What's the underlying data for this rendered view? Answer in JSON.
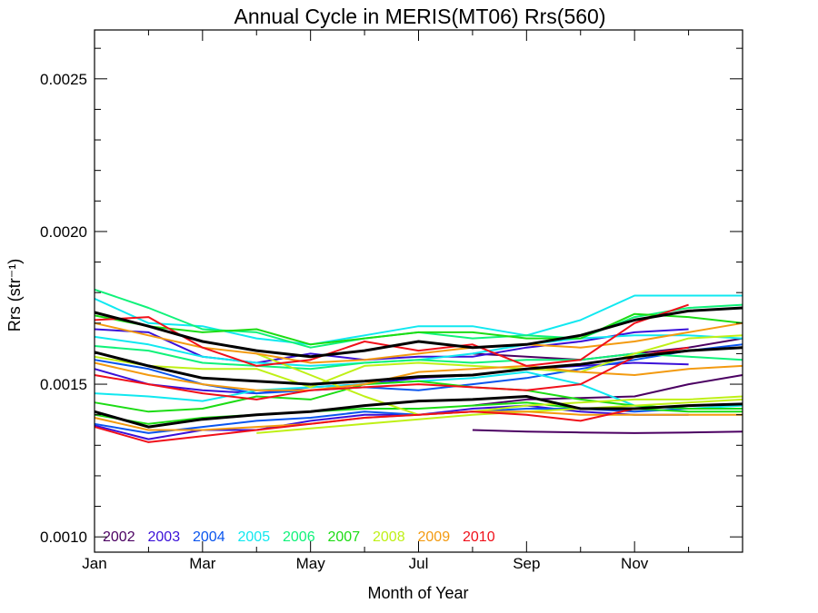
{
  "chart_data": {
    "type": "line",
    "title": "Annual Cycle in MERIS(MT06) Rrs(560)",
    "xlabel": "Month of Year",
    "ylabel": "Rrs (str⁻¹)",
    "xlim": [
      1,
      13
    ],
    "ylim": [
      0.00095,
      0.00266
    ],
    "x_ticks": [
      {
        "value": 1,
        "label": "Jan"
      },
      {
        "value": 3,
        "label": "Mar"
      },
      {
        "value": 5,
        "label": "May"
      },
      {
        "value": 7,
        "label": "Jul"
      },
      {
        "value": 9,
        "label": "Sep"
      },
      {
        "value": 11,
        "label": "Nov"
      }
    ],
    "y_ticks": [
      {
        "value": 0.001,
        "label": "0.0010"
      },
      {
        "value": 0.0015,
        "label": "0.0015"
      },
      {
        "value": 0.002,
        "label": "0.0020"
      },
      {
        "value": 0.0025,
        "label": "0.0025"
      }
    ],
    "legend": [
      {
        "label": "2002",
        "color": "#4b0062"
      },
      {
        "label": "2003",
        "color": "#3a10d8"
      },
      {
        "label": "2004",
        "color": "#0a55ee"
      },
      {
        "label": "2005",
        "color": "#10e8f0"
      },
      {
        "label": "2006",
        "color": "#10f27a"
      },
      {
        "label": "2007",
        "color": "#1cdc14"
      },
      {
        "label": "2008",
        "color": "#bff016"
      },
      {
        "label": "2009",
        "color": "#f39a10"
      },
      {
        "label": "2010",
        "color": "#f0101a"
      }
    ],
    "legend_position": "bottom-left",
    "series": [
      {
        "color": "#4b0062",
        "x": [
          8,
          9,
          10,
          11,
          12,
          13
        ],
        "y": [
          0.00135,
          0.001345,
          0.001342,
          0.00134,
          0.001342,
          0.001345
        ]
      },
      {
        "color": "#4b0062",
        "x": [
          8,
          9,
          10,
          11,
          12,
          13
        ],
        "y": [
          0.00143,
          0.00145,
          0.001455,
          0.00146,
          0.0015,
          0.00153
        ]
      },
      {
        "color": "#4b0062",
        "x": [
          8,
          9,
          10,
          11,
          12,
          13
        ],
        "y": [
          0.0016,
          0.00159,
          0.00158,
          0.0016,
          0.00162,
          0.00165
        ]
      },
      {
        "color": "#3a10d8",
        "x": [
          1,
          2,
          3,
          4,
          5,
          6,
          7,
          8,
          9,
          10,
          11,
          12
        ],
        "y": [
          0.00168,
          0.00167,
          0.00159,
          0.00157,
          0.0016,
          0.00158,
          0.00159,
          0.00159,
          0.00162,
          0.00164,
          0.00167,
          0.00168
        ]
      },
      {
        "color": "#3a10d8",
        "x": [
          1,
          2,
          3,
          4,
          5,
          6,
          7,
          8,
          9,
          10,
          11,
          12
        ],
        "y": [
          0.00155,
          0.0015,
          0.00148,
          0.00147,
          0.00149,
          0.0015,
          0.00152,
          0.00153,
          0.00155,
          0.00156,
          0.00157,
          0.001565
        ]
      },
      {
        "color": "#3a10d8",
        "x": [
          1,
          2,
          3,
          4,
          5,
          6,
          7,
          8,
          9,
          10,
          11,
          12
        ],
        "y": [
          0.001365,
          0.00132,
          0.00135,
          0.00135,
          0.00138,
          0.0014,
          0.0014,
          0.00142,
          0.00143,
          0.00141,
          0.0014,
          0.0014
        ]
      },
      {
        "color": "#0a55ee",
        "x": [
          1,
          2,
          3,
          4,
          5,
          6,
          7,
          8,
          9,
          10,
          11,
          12,
          13
        ],
        "y": [
          0.00137,
          0.00134,
          0.00136,
          0.00138,
          0.00139,
          0.00141,
          0.0014,
          0.00141,
          0.00142,
          0.00142,
          0.00141,
          0.00142,
          0.00142
        ]
      },
      {
        "color": "#0a55ee",
        "x": [
          1,
          2,
          3,
          4,
          5,
          6,
          7,
          8,
          9,
          10,
          11,
          12,
          13
        ],
        "y": [
          0.00158,
          0.00155,
          0.0015,
          0.00147,
          0.00148,
          0.00149,
          0.00148,
          0.0015,
          0.00152,
          0.00155,
          0.00158,
          0.00161,
          0.00163
        ]
      },
      {
        "color": "#10e8f0",
        "x": [
          1,
          2,
          3,
          4,
          5,
          6,
          7,
          8,
          9,
          10,
          11,
          12,
          13
        ],
        "y": [
          0.00178,
          0.0017,
          0.00169,
          0.00165,
          0.00163,
          0.00166,
          0.00169,
          0.00169,
          0.00166,
          0.00171,
          0.00179,
          0.00179,
          0.00179
        ]
      },
      {
        "color": "#10e8f0",
        "x": [
          1,
          2,
          3,
          4,
          5,
          6,
          7,
          8,
          9,
          10,
          11,
          12,
          13
        ],
        "y": [
          0.001655,
          0.00163,
          0.00159,
          0.00157,
          0.00156,
          0.00157,
          0.00158,
          0.0016,
          0.00163,
          0.00165,
          0.00166,
          0.00166,
          0.00165
        ]
      },
      {
        "color": "#10e8f0",
        "x": [
          1,
          2,
          3,
          4,
          5,
          6,
          7,
          8,
          9,
          10,
          11,
          12,
          13
        ],
        "y": [
          0.00147,
          0.00146,
          0.001445,
          0.00148,
          0.00149,
          0.0015,
          0.00151,
          0.00152,
          0.00154,
          0.0015,
          0.00143,
          0.00142,
          0.00143
        ]
      },
      {
        "color": "#10f27a",
        "x": [
          1,
          2,
          3,
          4,
          5,
          6,
          7,
          8,
          9,
          10,
          11,
          12,
          13
        ],
        "y": [
          0.00181,
          0.00175,
          0.00168,
          0.00167,
          0.00162,
          0.00165,
          0.00167,
          0.00165,
          0.00166,
          0.00165,
          0.00172,
          0.00175,
          0.00176
        ]
      },
      {
        "color": "#10f27a",
        "x": [
          1,
          2,
          3,
          4,
          5,
          6,
          7,
          8,
          9,
          10,
          11,
          12,
          13
        ],
        "y": [
          0.001625,
          0.00161,
          0.00157,
          0.00156,
          0.00155,
          0.00157,
          0.00158,
          0.00157,
          0.00158,
          0.00158,
          0.0016,
          0.00159,
          0.00158
        ]
      },
      {
        "color": "#1cdc14",
        "x": [
          1,
          2,
          3,
          4,
          5,
          6,
          7,
          8,
          9,
          10,
          11,
          12,
          13
        ],
        "y": [
          0.001725,
          0.00169,
          0.00167,
          0.00168,
          0.00163,
          0.00165,
          0.00167,
          0.00167,
          0.00165,
          0.00165,
          0.00173,
          0.00172,
          0.0017
        ]
      },
      {
        "color": "#1cdc14",
        "x": [
          1,
          2,
          3,
          4,
          5,
          6,
          7,
          8,
          9,
          10,
          11,
          12,
          13
        ],
        "y": [
          0.00144,
          0.00141,
          0.00142,
          0.00146,
          0.00145,
          0.0015,
          0.00151,
          0.00149,
          0.00148,
          0.00145,
          0.00143,
          0.00142,
          0.00142
        ]
      },
      {
        "color": "#1cdc14",
        "x": [
          1,
          2,
          3,
          4,
          5,
          6,
          7,
          8,
          9,
          10,
          11,
          12,
          13
        ],
        "y": [
          0.0014,
          0.00137,
          0.00139,
          0.0014,
          0.00141,
          0.00142,
          0.00142,
          0.00143,
          0.00144,
          0.00142,
          0.00142,
          0.00141,
          0.00141
        ]
      },
      {
        "color": "#bff016",
        "x": [
          1,
          2,
          3,
          4,
          5,
          6,
          7,
          8,
          9,
          10,
          11,
          12,
          13
        ],
        "y": [
          0.00159,
          0.00156,
          0.00155,
          0.00155,
          0.00149,
          0.00156,
          0.00157,
          0.00156,
          0.00155,
          0.00154,
          0.0016,
          0.00165,
          0.00166
        ]
      },
      {
        "color": "#bff016",
        "x": [
          4,
          5,
          6,
          7,
          8,
          9,
          10,
          11,
          12,
          13
        ],
        "y": [
          0.0016,
          0.00153,
          0.00146,
          0.0014,
          0.00141,
          0.00143,
          0.00144,
          0.00145,
          0.00145,
          0.00146
        ]
      },
      {
        "color": "#bff016",
        "x": [
          4,
          5,
          6,
          7,
          8,
          9,
          10,
          11,
          12,
          13
        ],
        "y": [
          0.00134,
          0.001355,
          0.00137,
          0.001385,
          0.0014,
          0.00141,
          0.00142,
          0.00143,
          0.00144,
          0.00145
        ]
      },
      {
        "color": "#f39a10",
        "x": [
          1,
          2,
          3,
          4,
          5,
          6,
          7,
          8,
          9,
          10,
          11,
          12,
          13
        ],
        "y": [
          0.0017,
          0.00166,
          0.00162,
          0.0016,
          0.00157,
          0.00158,
          0.0016,
          0.00162,
          0.00163,
          0.00162,
          0.00164,
          0.00167,
          0.0017
        ]
      },
      {
        "color": "#f39a10",
        "x": [
          1,
          2,
          3,
          4,
          5,
          6,
          7,
          8,
          9,
          10,
          11,
          12,
          13
        ],
        "y": [
          0.00157,
          0.00153,
          0.0015,
          0.00148,
          0.00148,
          0.0015,
          0.00154,
          0.00155,
          0.00156,
          0.00154,
          0.00153,
          0.00155,
          0.00156
        ]
      },
      {
        "color": "#f39a10",
        "x": [
          1,
          2,
          3,
          4,
          5,
          6,
          7,
          8,
          9,
          10,
          11,
          12,
          13
        ],
        "y": [
          0.00139,
          0.00135,
          0.00135,
          0.00136,
          0.00137,
          0.00139,
          0.0014,
          0.00141,
          0.00141,
          0.0014,
          0.0014,
          0.0014,
          0.0014
        ]
      },
      {
        "color": "#f0101a",
        "x": [
          1,
          2,
          3,
          4,
          5,
          6,
          7,
          8,
          9,
          10,
          11,
          12
        ],
        "y": [
          0.00171,
          0.00172,
          0.00162,
          0.00156,
          0.00158,
          0.00164,
          0.00161,
          0.00163,
          0.00156,
          0.00158,
          0.0017,
          0.00176
        ]
      },
      {
        "color": "#f0101a",
        "x": [
          1,
          2,
          3,
          4,
          5,
          6,
          7,
          8,
          9,
          10,
          11,
          12
        ],
        "y": [
          0.00153,
          0.0015,
          0.00147,
          0.00145,
          0.00148,
          0.00149,
          0.0015,
          0.00149,
          0.00148,
          0.0015,
          0.00159,
          0.00162
        ]
      },
      {
        "color": "#f0101a",
        "x": [
          1,
          2,
          3,
          4,
          5,
          6,
          7,
          8,
          9,
          10,
          11,
          12
        ],
        "y": [
          0.00136,
          0.00131,
          0.00133,
          0.00135,
          0.00137,
          0.00139,
          0.0014,
          0.00141,
          0.0014,
          0.00138,
          0.00142,
          0.00143
        ]
      },
      {
        "color": "#000000",
        "width": 3,
        "x": [
          1,
          2,
          3,
          4,
          5,
          6,
          7,
          8,
          9,
          10,
          11,
          12,
          13
        ],
        "y": [
          0.001735,
          0.00169,
          0.00164,
          0.00161,
          0.00159,
          0.00161,
          0.00164,
          0.00162,
          0.00163,
          0.00166,
          0.00171,
          0.00174,
          0.00175
        ]
      },
      {
        "color": "#000000",
        "width": 3,
        "x": [
          1,
          2,
          3,
          4,
          5,
          6,
          7,
          8,
          9,
          10,
          11,
          12,
          13
        ],
        "y": [
          0.001605,
          0.00156,
          0.00152,
          0.00151,
          0.0015,
          0.00151,
          0.001525,
          0.00153,
          0.00155,
          0.001565,
          0.00159,
          0.00161,
          0.00162
        ]
      },
      {
        "color": "#000000",
        "width": 3,
        "x": [
          1,
          2,
          3,
          4,
          5,
          6,
          7,
          8,
          9,
          10,
          11,
          12,
          13
        ],
        "y": [
          0.00141,
          0.00136,
          0.001385,
          0.0014,
          0.00141,
          0.00143,
          0.001445,
          0.00145,
          0.00146,
          0.00142,
          0.00142,
          0.00143,
          0.001435
        ]
      }
    ]
  }
}
